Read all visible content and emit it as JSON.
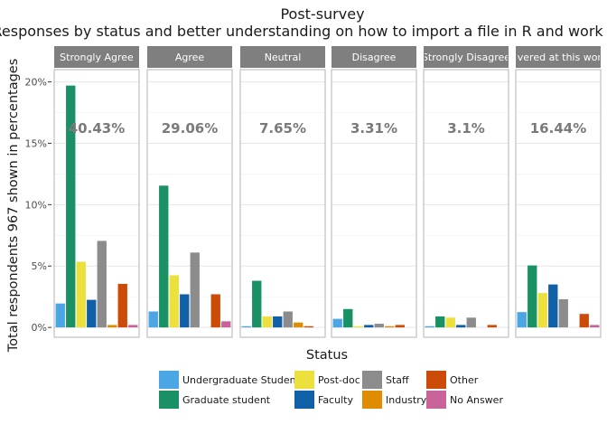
{
  "chart_data": {
    "type": "bar",
    "title": "Post-survey",
    "subtitle": "Responses by status and better understanding on how to import a file in R and work with it",
    "xlabel": "Status",
    "ylabel": "Total respondents 967 shown in percentages",
    "ylim": [
      -0.8,
      21
    ],
    "y_ticks": [
      0,
      5,
      10,
      15,
      20
    ],
    "y_tick_labels": [
      "0%",
      "5%",
      "10%",
      "15%",
      "20%"
    ],
    "grid": true,
    "legend_position": "bottom",
    "series": [
      {
        "name": "Undergraduate Student",
        "color": "#4ba6e6"
      },
      {
        "name": "Graduate student",
        "color": "#1a9165"
      },
      {
        "name": "Post-doc",
        "color": "#ebe03c"
      },
      {
        "name": "Faculty",
        "color": "#1060a8"
      },
      {
        "name": "Staff",
        "color": "#8c8c8c"
      },
      {
        "name": "Industry",
        "color": "#e08c00"
      },
      {
        "name": "Other",
        "color": "#cc4b08"
      },
      {
        "name": "No Answer",
        "color": "#c8649a"
      }
    ],
    "panels": [
      {
        "label": "Strongly Agree",
        "total": "40.43%",
        "values": [
          1.95,
          19.7,
          5.35,
          2.25,
          7.05,
          0.2,
          3.55,
          0.2
        ]
      },
      {
        "label": "Agree",
        "total": "29.06%",
        "values": [
          1.3,
          11.55,
          4.25,
          2.7,
          6.1,
          0,
          2.7,
          0.5
        ]
      },
      {
        "label": "Neutral",
        "total": "7.65%",
        "values": [
          0.1,
          3.8,
          0.9,
          0.9,
          1.3,
          0.4,
          0.1,
          0
        ]
      },
      {
        "label": "Disagree",
        "total": "3.31%",
        "values": [
          0.7,
          1.5,
          0.1,
          0.2,
          0.3,
          0.1,
          0.2,
          0
        ]
      },
      {
        "label": "Strongly Disagree",
        "total": "3.1%",
        "values": [
          0.1,
          0.9,
          0.8,
          0.2,
          0.8,
          0,
          0.2,
          0
        ]
      },
      {
        "label": "Not covered at this workshop",
        "total": "16.44%",
        "values": [
          1.25,
          5.05,
          2.8,
          3.5,
          2.3,
          0,
          1.1,
          0.2
        ]
      }
    ]
  }
}
